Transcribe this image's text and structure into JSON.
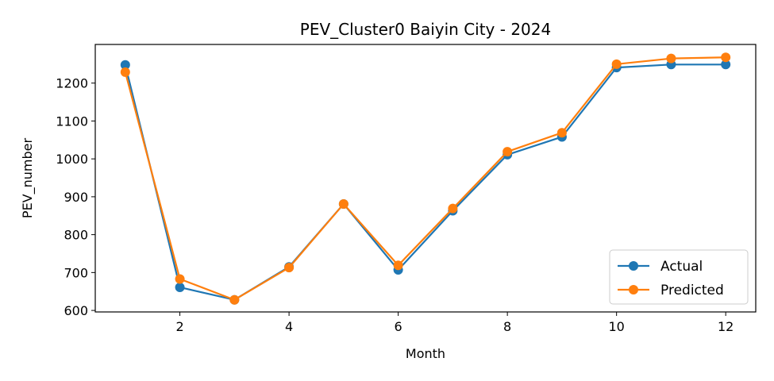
{
  "chart_data": {
    "type": "line",
    "title": "PEV_Cluster0 Baiyin City - 2024",
    "xlabel": "Month",
    "ylabel": "PEV_number",
    "xlim": [
      0.45,
      12.55
    ],
    "ylim": [
      596,
      1302
    ],
    "xticks": [
      2,
      4,
      6,
      8,
      10,
      12
    ],
    "yticks": [
      600,
      700,
      800,
      900,
      1000,
      1100,
      1200
    ],
    "grid": false,
    "legend_position": "lower-right",
    "x": [
      1,
      2,
      3,
      4,
      5,
      6,
      7,
      8,
      9,
      10,
      11,
      12
    ],
    "series": [
      {
        "name": "Actual",
        "color": "#1f77b4",
        "values": [
          1248,
          661,
          628,
          715,
          881,
          707,
          863,
          1011,
          1058,
          1241,
          1249,
          1249
        ]
      },
      {
        "name": "Predicted",
        "color": "#ff7f0e",
        "values": [
          1229,
          683,
          628,
          713,
          881,
          719,
          869,
          1019,
          1069,
          1250,
          1265,
          1268
        ]
      }
    ]
  }
}
